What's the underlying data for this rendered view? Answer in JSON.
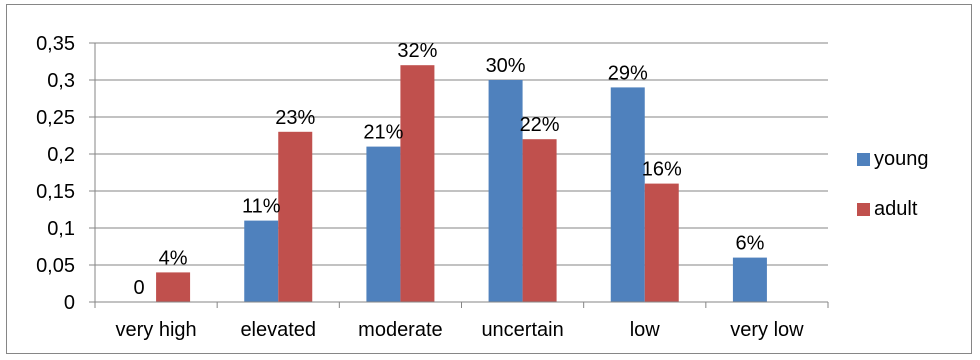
{
  "chart_data": {
    "type": "bar",
    "categories": [
      "very high",
      "elevated",
      "moderate",
      "uncertain",
      "low",
      "very low"
    ],
    "series": [
      {
        "name": "young",
        "color": "#4f81bd",
        "values": [
          0,
          0.11,
          0.21,
          0.3,
          0.29,
          0.06
        ],
        "labels": [
          "0",
          "11%",
          "21%",
          "30%",
          "29%",
          "6%"
        ]
      },
      {
        "name": "adult",
        "color": "#c0504d",
        "values": [
          0.04,
          0.23,
          0.32,
          0.22,
          0.16,
          null
        ],
        "labels": [
          "4%",
          "23%",
          "32%",
          "22%",
          "16%",
          ""
        ]
      }
    ],
    "ylim": [
      0,
      0.35
    ],
    "yticks": [
      0,
      0.05,
      0.1,
      0.15,
      0.2,
      0.25,
      0.3,
      0.35
    ],
    "ytick_labels": [
      "0",
      "0,05",
      "0,1",
      "0,15",
      "0,2",
      "0,25",
      "0,3",
      "0,35"
    ],
    "grid": true,
    "legend_position": "right",
    "title": "",
    "xlabel": "",
    "ylabel": ""
  }
}
